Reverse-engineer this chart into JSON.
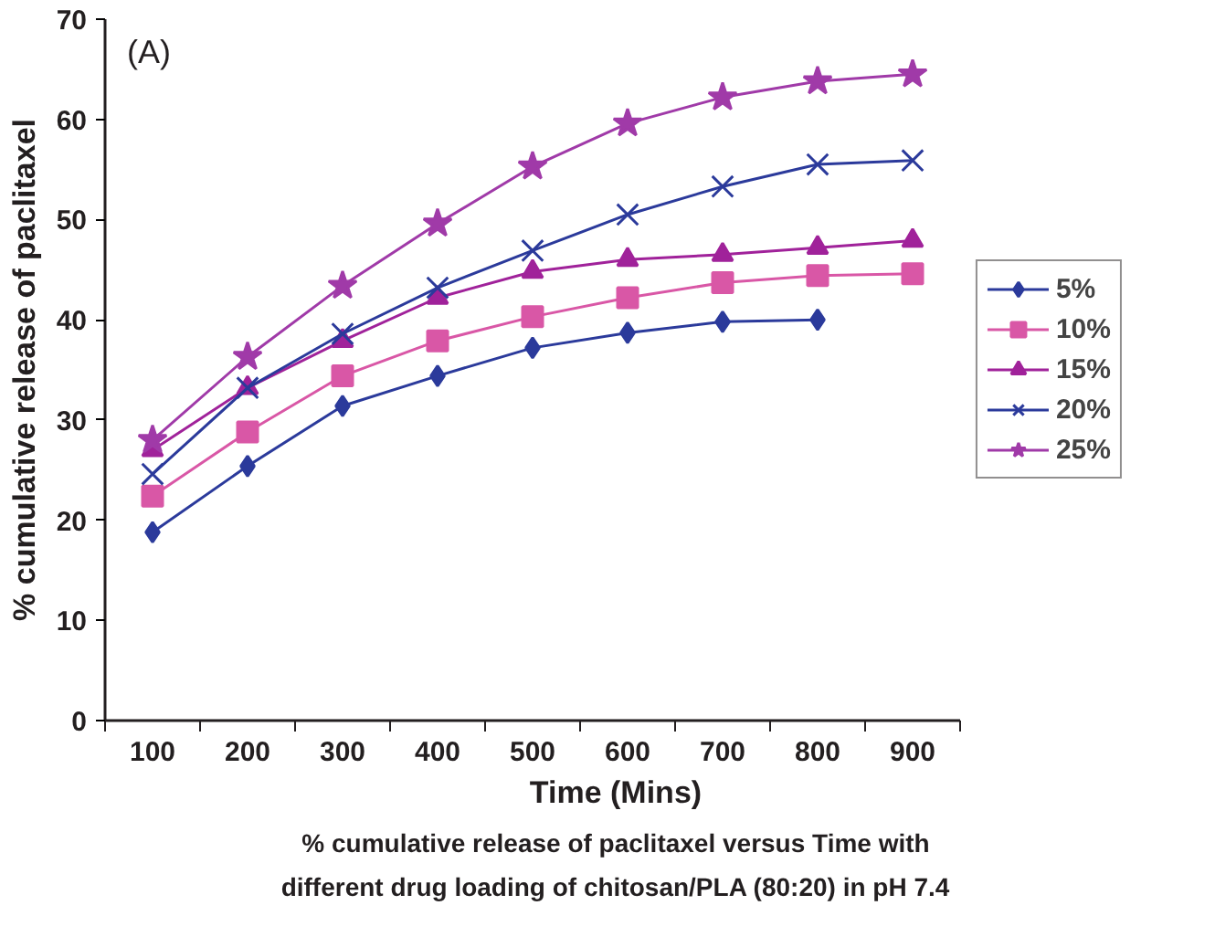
{
  "chart_data": {
    "type": "line",
    "title": "% cumulative release of paclitaxel versus Time with\ndifferent drug loading of chitosan/PLA (80:20) in pH 7.4",
    "xlabel": "Time (Mins)",
    "ylabel": "% cumulative release of paclitaxel",
    "annotations": [
      "(A)"
    ],
    "categories": [
      "100",
      "200",
      "300",
      "400",
      "500",
      "600",
      "700",
      "800",
      "900"
    ],
    "ylim": [
      0,
      70
    ],
    "yticks": [
      0,
      10,
      20,
      30,
      40,
      50,
      60,
      70
    ],
    "grid": false,
    "legend": "right",
    "series": [
      {
        "name": "5%",
        "color": "#2b3a9b",
        "marker": "diamond",
        "values": [
          18.8,
          25.4,
          31.4,
          34.4,
          37.2,
          38.7,
          39.8,
          40.0,
          null
        ]
      },
      {
        "name": "10%",
        "color": "#d957a6",
        "marker": "square",
        "values": [
          22.4,
          28.8,
          34.4,
          37.9,
          40.3,
          42.2,
          43.7,
          44.4,
          44.6
        ]
      },
      {
        "name": "15%",
        "color": "#a0229a",
        "marker": "triangle",
        "values": [
          27.0,
          33.2,
          37.9,
          42.2,
          44.8,
          46.0,
          46.5,
          47.2,
          47.9
        ]
      },
      {
        "name": "20%",
        "color": "#2b3a9b",
        "marker": "cross",
        "values": [
          24.6,
          33.2,
          38.6,
          43.2,
          46.9,
          50.5,
          53.3,
          55.5,
          55.9
        ]
      },
      {
        "name": "25%",
        "color": "#a03aa8",
        "marker": "star",
        "values": [
          28.0,
          36.3,
          43.4,
          49.6,
          55.3,
          59.6,
          62.2,
          63.8,
          64.5
        ]
      }
    ]
  }
}
